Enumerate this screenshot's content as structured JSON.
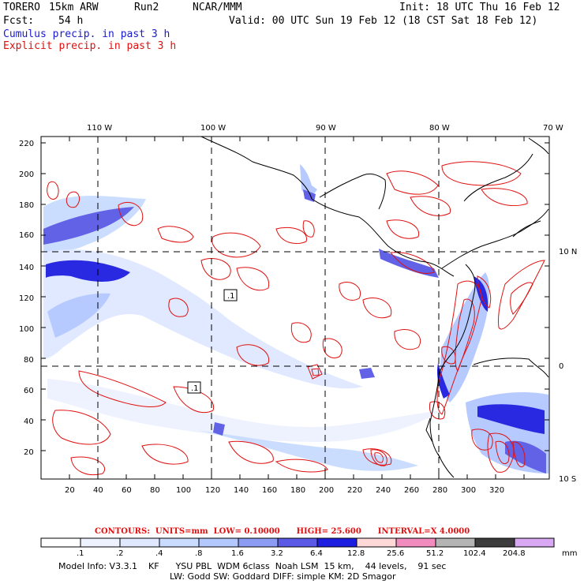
{
  "header": {
    "model": "TORERO",
    "resolution": "15km ARW",
    "run": "Run2",
    "org": "NCAR/MMM",
    "init": "Init: 18 UTC Thu 16 Feb 12",
    "fcst_label": "Fcst:",
    "fcst_value": "54 h",
    "valid": "Valid: 00 UTC Sun 19 Feb 12 (18 CST Sat 18 Feb 12)"
  },
  "legend_lines": {
    "cumulus": "Cumulus precip. in past 3 h",
    "explicit": "Explicit precip. in past 3 h",
    "cumulus_color": "#1a1ad0",
    "explicit_color": "#e01010"
  },
  "map": {
    "top_lon_labels": [
      "110 W",
      "100 W",
      "90 W",
      "80 W",
      "70 W"
    ],
    "right_lat_labels": [
      "10 N",
      "0",
      "10 S"
    ],
    "left_y_ticks": [
      "220",
      "200",
      "180",
      "160",
      "140",
      "120",
      "100",
      "80",
      "60",
      "40",
      "20"
    ],
    "bottom_x_ticks": [
      "20",
      "40",
      "60",
      "80",
      "100",
      "120",
      "140",
      "160",
      "180",
      "200",
      "220",
      "240",
      "260",
      "280",
      "300",
      "320"
    ],
    "box_labels": [
      ".1",
      ".1"
    ]
  },
  "contours_text": {
    "label": "CONTOURS:",
    "units": "UNITS=mm",
    "low": "LOW= 0.10000",
    "high": "HIGH= 25.600",
    "interval": "INTERVAL=X 4.0000"
  },
  "colorbar": {
    "labels": [
      ".1",
      ".2",
      ".4",
      ".8",
      "1.6",
      "3.2",
      "6.4",
      "12.8",
      "25.6",
      "51.2",
      "102.4",
      "204.8"
    ],
    "unit": "mm",
    "colors": [
      "#ffffff",
      "#eef2ff",
      "#dfe8ff",
      "#c9dcff",
      "#b3c8ff",
      "#8c9cf4",
      "#5a5ae6",
      "#1e1ee0",
      "#ffd8d8",
      "#f28cbf",
      "#b4b4b4",
      "#3c3c3c",
      "#d9a8f2"
    ]
  },
  "footer": {
    "line1": "Model Info: V3.3.1    KF      YSU PBL  WDM 6class  Noah LSM  15 km,    44 levels,    91 sec",
    "line2": "LW: Godd SW: Goddard DIFF: simple KM: 2D Smagor"
  }
}
